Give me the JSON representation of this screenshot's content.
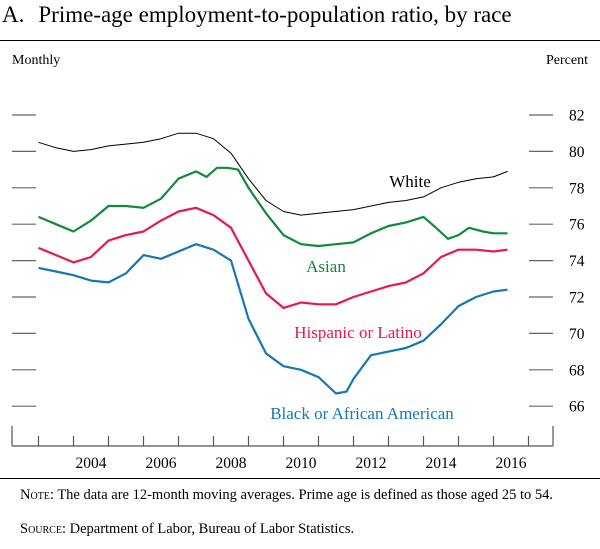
{
  "title": {
    "panel": "A.",
    "text": "Prime-age employment-to-population ratio, by race"
  },
  "left_label": "Monthly",
  "right_label": "Percent",
  "notes": {
    "note_label": "Note:",
    "note_text": "The data are 12-month moving averages. Prime age is defined as those aged 25 to 54.",
    "source_label": "Source:",
    "source_text": "Department of Labor, Bureau of Labor Statistics."
  },
  "chart_data": {
    "type": "line",
    "title": "Prime-age employment-to-population ratio, by race",
    "xlabel": "",
    "ylabel": "Percent",
    "xlim": [
      2002.25,
      2017.7
    ],
    "ylim": [
      64,
      84
    ],
    "x_ticks": [
      "2004",
      "2006",
      "2008",
      "2010",
      "2012",
      "2014",
      "2016"
    ],
    "y_ticks": [
      66,
      68,
      70,
      72,
      74,
      76,
      78,
      80,
      82
    ],
    "grid": false,
    "series": [
      {
        "name": "White",
        "color": "#000000",
        "x": [
          2003,
          2003.5,
          2004,
          2004.5,
          2005,
          2006,
          2006.5,
          2007,
          2007.5,
          2008,
          2008.5,
          2009,
          2009.5,
          2010,
          2010.5,
          2011,
          2012,
          2013,
          2013.5,
          2014,
          2014.5,
          2015,
          2015.5,
          2016,
          2016.4
        ],
        "y": [
          80.5,
          80.2,
          80.0,
          80.1,
          80.3,
          80.5,
          80.7,
          81.0,
          81.0,
          80.7,
          79.9,
          78.5,
          77.3,
          76.7,
          76.5,
          76.6,
          76.8,
          77.2,
          77.3,
          77.5,
          78.0,
          78.3,
          78.5,
          78.6,
          78.9
        ]
      },
      {
        "name": "Asian",
        "color": "#108a3c",
        "x": [
          2003,
          2003.5,
          2004,
          2004.5,
          2005,
          2005.5,
          2006,
          2006.5,
          2007,
          2007.5,
          2007.8,
          2008.1,
          2008.4,
          2008.7,
          2009,
          2009.5,
          2010,
          2010.5,
          2011,
          2011.5,
          2012,
          2012.5,
          2013,
          2013.5,
          2014,
          2014.3,
          2014.7,
          2015,
          2015.3,
          2015.7,
          2016,
          2016.4
        ],
        "y": [
          76.4,
          76.0,
          75.6,
          76.2,
          77.0,
          77.0,
          76.9,
          77.4,
          78.5,
          78.9,
          78.6,
          79.1,
          79.1,
          79.0,
          78.0,
          76.6,
          75.4,
          74.9,
          74.8,
          74.9,
          75.0,
          75.5,
          75.9,
          76.1,
          76.4,
          75.9,
          75.2,
          75.4,
          75.8,
          75.6,
          75.5,
          75.5
        ]
      },
      {
        "name": "Hispanic or Latino",
        "color": "#e8184d",
        "x": [
          2003,
          2003.5,
          2004,
          2004.5,
          2005,
          2005.5,
          2006,
          2006.5,
          2007,
          2007.5,
          2008,
          2008.5,
          2009,
          2009.5,
          2010,
          2010.5,
          2011,
          2011.5,
          2012,
          2012.5,
          2013,
          2013.5,
          2014,
          2014.5,
          2015,
          2015.5,
          2016,
          2016.4
        ],
        "y": [
          74.7,
          74.3,
          73.9,
          74.2,
          75.1,
          75.4,
          75.6,
          76.2,
          76.7,
          76.9,
          76.5,
          75.8,
          74.0,
          72.2,
          71.4,
          71.7,
          71.6,
          71.6,
          72.0,
          72.3,
          72.6,
          72.8,
          73.3,
          74.2,
          74.6,
          74.6,
          74.5,
          74.6
        ]
      },
      {
        "name": "Black or African American",
        "color": "#1478b4",
        "x": [
          2003,
          2003.5,
          2004,
          2004.5,
          2005,
          2005.5,
          2006,
          2006.5,
          2007,
          2007.5,
          2008,
          2008.5,
          2009,
          2009.5,
          2010,
          2010.5,
          2011,
          2011.5,
          2011.8,
          2012,
          2012.5,
          2013,
          2013.5,
          2014,
          2014.5,
          2015,
          2015.5,
          2016,
          2016.4
        ],
        "y": [
          73.6,
          73.4,
          73.2,
          72.9,
          72.8,
          73.3,
          74.3,
          74.1,
          74.5,
          74.9,
          74.6,
          74.0,
          70.8,
          68.9,
          68.2,
          68.0,
          67.6,
          66.7,
          66.8,
          67.5,
          68.8,
          69.0,
          69.2,
          69.6,
          70.5,
          71.5,
          72.0,
          72.3,
          72.4
        ]
      }
    ],
    "annotations": [
      "White",
      "Asian",
      "Hispanic or Latino",
      "Black or African American"
    ]
  }
}
